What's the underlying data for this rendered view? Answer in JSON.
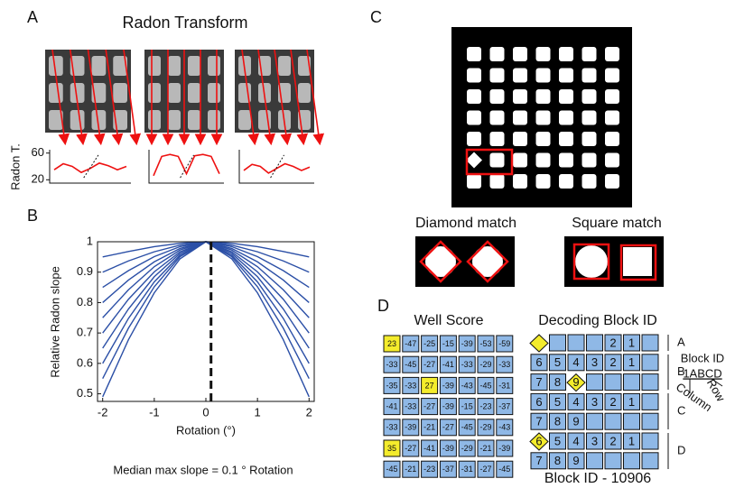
{
  "panel_a": {
    "label": "A",
    "title": "Radon Transform",
    "y_label": "Radon T.",
    "ylim": [
      15,
      65
    ],
    "yticks": [
      20,
      60
    ],
    "plots": [
      {
        "values": [
          35,
          44,
          40,
          31,
          37,
          45,
          41,
          35,
          40
        ]
      },
      {
        "values": [
          26,
          55,
          58,
          55,
          29,
          56,
          58,
          55,
          29
        ]
      },
      {
        "values": [
          34,
          43,
          40,
          30,
          37,
          44,
          40,
          34,
          39
        ]
      }
    ]
  },
  "panel_b": {
    "label": "B",
    "type": "line",
    "x_label": "Rotation (°)",
    "y_label": "Relative Radon slope",
    "caption": "Median max slope = 0.1 ° Rotation",
    "median": 0.1,
    "color": "#2b4fa6",
    "xlim": [
      -2.1,
      2.1
    ],
    "ylim": [
      0.475,
      1
    ],
    "xticks": [
      -2,
      -1,
      0,
      1,
      2
    ],
    "yticks": [
      0.5,
      0.6,
      0.7,
      0.8,
      0.9,
      1
    ],
    "x": [
      -2,
      -1.5,
      -1,
      -0.5,
      0,
      0.5,
      1,
      1.5,
      2
    ],
    "series": [
      {
        "values": [
          0.49,
          0.678,
          0.832,
          0.944,
          1,
          0.944,
          0.832,
          0.678,
          0.49
        ]
      },
      {
        "values": [
          0.55,
          0.716,
          0.852,
          0.951,
          1,
          0.951,
          0.852,
          0.716,
          0.55
        ]
      },
      {
        "values": [
          0.6,
          0.748,
          0.868,
          0.956,
          1,
          0.956,
          0.868,
          0.748,
          0.6
        ]
      },
      {
        "values": [
          0.65,
          0.779,
          0.885,
          0.962,
          1,
          0.962,
          0.885,
          0.779,
          0.65
        ]
      },
      {
        "values": [
          0.7,
          0.811,
          0.901,
          0.967,
          1,
          0.967,
          0.901,
          0.811,
          0.7
        ]
      },
      {
        "values": [
          0.75,
          0.842,
          0.918,
          0.973,
          1,
          0.973,
          0.918,
          0.842,
          0.75
        ]
      },
      {
        "values": [
          0.8,
          0.874,
          0.934,
          0.978,
          1,
          0.978,
          0.934,
          0.874,
          0.8
        ]
      },
      {
        "values": [
          0.85,
          0.905,
          0.951,
          0.984,
          1,
          0.984,
          0.951,
          0.905,
          0.85
        ]
      },
      {
        "values": [
          0.9,
          0.937,
          0.967,
          0.989,
          1,
          0.989,
          0.967,
          0.937,
          0.9
        ]
      },
      {
        "values": [
          0.95,
          0.968,
          0.984,
          0.995,
          1,
          0.995,
          0.984,
          0.968,
          0.95
        ]
      }
    ]
  },
  "panel_c": {
    "label": "C",
    "captions": [
      "Diamond match",
      "Square match"
    ]
  },
  "panel_d": {
    "label": "D",
    "well_score": {
      "title": "Well Score",
      "rows": [
        [
          {
            "value": 23,
            "highlight": true
          },
          -47,
          -25,
          -15,
          -39,
          -53,
          -59
        ],
        [
          -33,
          -45,
          -27,
          -41,
          -33,
          -29,
          -33
        ],
        [
          -35,
          -33,
          {
            "value": 27,
            "highlight": true
          },
          -39,
          -43,
          -45,
          -31
        ],
        [
          -41,
          -33,
          -27,
          -39,
          -15,
          -23,
          -37
        ],
        [
          -33,
          -39,
          -21,
          -27,
          -45,
          -29,
          -43
        ],
        [
          {
            "value": 35,
            "highlight": true
          },
          -27,
          -41,
          -39,
          -29,
          -21,
          -39
        ],
        [
          -45,
          -21,
          -23,
          -37,
          -31,
          -27,
          -45
        ]
      ]
    },
    "block_id": {
      "title": "Decoding Block ID",
      "caption": "Block ID - 10906",
      "row_labels": [
        "A",
        "B",
        "C",
        "D"
      ],
      "legend": {
        "title": "Block ID",
        "code": "1ABCD",
        "row": "Row",
        "column": "Column"
      },
      "rows": [
        [
          {
            "marker": "diamond"
          },
          null,
          null,
          null,
          2,
          1,
          null
        ],
        [
          6,
          5,
          4,
          3,
          2,
          1,
          null
        ],
        [
          7,
          8,
          {
            "value": 9,
            "marker": "diamond"
          },
          null,
          null,
          null,
          null
        ],
        [
          6,
          5,
          4,
          3,
          2,
          1,
          null
        ],
        [
          7,
          8,
          9,
          null,
          null,
          null,
          null
        ],
        [
          {
            "value": 6,
            "marker": "diamond"
          },
          5,
          4,
          3,
          2,
          1,
          null
        ],
        [
          7,
          8,
          9,
          null,
          null,
          null,
          null
        ]
      ]
    }
  }
}
